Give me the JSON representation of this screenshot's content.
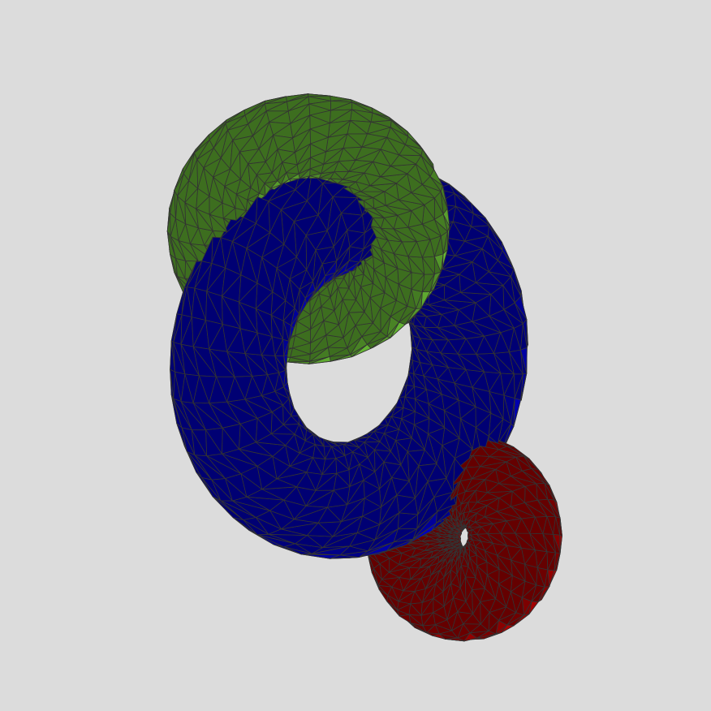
{
  "scene": {
    "background_color": "#dcdcdc",
    "wire_color": "#333333",
    "objects": [
      {
        "name": "green-torus",
        "color": "#88f545",
        "shape": "torus",
        "hole": "large"
      },
      {
        "name": "blue-torus",
        "color": "#0000ff",
        "shape": "torus",
        "hole": "large"
      },
      {
        "name": "red-torus",
        "color": "#e00000",
        "shape": "torus",
        "hole": "small"
      }
    ]
  }
}
